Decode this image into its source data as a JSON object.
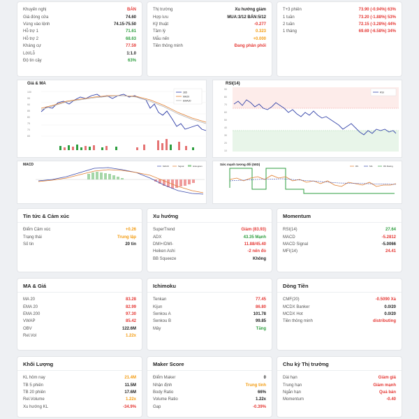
{
  "top_left": {
    "rows": [
      {
        "label": "Khuyến nghị",
        "value": "BÁN",
        "color": "red"
      },
      {
        "label": "Giá đóng cửa",
        "value": "74.60",
        "color": "dark"
      },
      {
        "label": "Vùng vào lệnh",
        "value": "74.15-75.50",
        "color": "dark"
      },
      {
        "label": "Hỗ trợ 1",
        "value": "71.61",
        "color": "green"
      },
      {
        "label": "Hỗ trợ 2",
        "value": "68.63",
        "color": "green"
      },
      {
        "label": "Kháng cự",
        "value": "77.59",
        "color": "red"
      },
      {
        "label": "Lời/Lỗ",
        "value": "1:1.0",
        "color": "dark"
      },
      {
        "label": "Độ tin cậy",
        "value": "63%",
        "color": "green"
      }
    ]
  },
  "top_mid": {
    "rows": [
      {
        "label": "Thị trường",
        "value": "Xu hướng giảm",
        "color": "dark"
      },
      {
        "label": "Hợp lưu",
        "value": "MUA:3/12 BÁN:5/12",
        "color": "dark"
      },
      {
        "label": "Kỹ thuật",
        "value": "-0.277",
        "color": "red"
      },
      {
        "label": "Tâm lý",
        "value": "0.323",
        "color": "orange"
      },
      {
        "label": "Mẫu nến",
        "value": "+0.000",
        "color": "orange"
      },
      {
        "label": "Tiền thông minh",
        "value": "Đang phân phối",
        "color": "red"
      }
    ]
  },
  "top_right": {
    "rows": [
      {
        "label": "T+3 phiên",
        "value": "73.90 (-0.94%) 63%",
        "color": "red"
      },
      {
        "label": "1 tuần",
        "value": "73.20 (-1.88%) 53%",
        "color": "red"
      },
      {
        "label": "2 tuần",
        "value": "72.15 (-3.28%) 44%",
        "color": "red"
      },
      {
        "label": "1 tháng",
        "value": "69.69 (-6.58%) 34%",
        "color": "red"
      }
    ]
  },
  "charts": {
    "price_title": "Giá & MA",
    "price_legend": [
      "365",
      "MA20",
      "EMA20"
    ],
    "price_yticks": [
      "100",
      "95",
      "90",
      "85",
      "80",
      "75",
      "70",
      "65"
    ],
    "rsi_title": "RSI(14)",
    "rsi_legend": "RSI",
    "rsi_yticks": [
      "90",
      "80",
      "70",
      "60",
      "50",
      "40",
      "30",
      "20",
      "10"
    ],
    "macd_title": "MACD",
    "macd_legend": [
      "MACD",
      "Signal",
      "Histogram"
    ],
    "strength_title": "Sức mạnh tương đối (50D)",
    "strength_legend": [
      "RS",
      "MA",
      "RS Rating"
    ]
  },
  "cards": [
    {
      "id": "news",
      "title": "Tin tức & Cảm xúc",
      "rows": [
        {
          "label": "Điểm Cảm xúc",
          "value": "+0.26",
          "color": "orange"
        },
        {
          "label": "Trạng thái",
          "value": "Trung lập",
          "color": "orange"
        },
        {
          "label": "Số tin",
          "value": "20 tin",
          "color": "dark"
        }
      ]
    },
    {
      "id": "trend",
      "title": "Xu hướng",
      "rows": [
        {
          "label": "SuperTrend",
          "value": "Giảm (83.93)",
          "color": "red"
        },
        {
          "label": "ADX",
          "value": "43.35 Mạnh",
          "color": "green"
        },
        {
          "label": "DMI+/DMI-",
          "value": "11.88/45.40",
          "color": "red"
        },
        {
          "label": "Heiken Ashi",
          "value": "-2 nến đỏ",
          "color": "red"
        },
        {
          "label": "BB Squeeze",
          "value": "Không",
          "color": "dark"
        }
      ]
    },
    {
      "id": "momentum",
      "title": "Momentum",
      "rows": [
        {
          "label": "RSI(14)",
          "value": "27.64",
          "color": "green"
        },
        {
          "label": "MACD",
          "value": "-5.2812",
          "color": "red"
        },
        {
          "label": "MACD Signal",
          "value": "-5.0066",
          "color": "dark"
        },
        {
          "label": "MFI(14)",
          "value": "24.41",
          "color": "red"
        }
      ]
    },
    {
      "id": "ma",
      "title": "MA & Giá",
      "rows": [
        {
          "label": "MA 20",
          "value": "83.28",
          "color": "red"
        },
        {
          "label": "EMA 20",
          "value": "82.99",
          "color": "red"
        },
        {
          "label": "EMA 200",
          "value": "97.30",
          "color": "red"
        },
        {
          "label": "VWAP",
          "value": "85.42",
          "color": "red"
        },
        {
          "label": "OBV",
          "value": "122.6M",
          "color": "dark"
        },
        {
          "label": "Rel.Vol",
          "value": "1.22x",
          "color": "orange"
        }
      ]
    },
    {
      "id": "ichimoku",
      "title": "Ichimoku",
      "rows": [
        {
          "label": "Tenkan",
          "value": "77.45",
          "color": "red"
        },
        {
          "label": "Kijun",
          "value": "86.80",
          "color": "red"
        },
        {
          "label": "Senkou A",
          "value": "101.78",
          "color": "dark"
        },
        {
          "label": "Senkou B",
          "value": "99.85",
          "color": "dark"
        },
        {
          "label": "Mây",
          "value": "Tăng",
          "color": "green"
        }
      ]
    },
    {
      "id": "cashflow",
      "title": "Dòng Tiền",
      "rows": [
        {
          "label": "CMF(20)",
          "value": "-0.5090 Xả",
          "color": "red"
        },
        {
          "label": "MCDX Banker",
          "value": "0.0/20",
          "color": "dark"
        },
        {
          "label": "MCDX Hot",
          "value": "0.0/20",
          "color": "dark"
        },
        {
          "label": "Tiền thông minh",
          "value": "distributing",
          "color": "red"
        }
      ]
    },
    {
      "id": "volume",
      "title": "Khối Lượng",
      "rows": [
        {
          "label": "KL hôm nay",
          "value": "21.4M",
          "color": "orange"
        },
        {
          "label": "TB 5 phiên",
          "value": "11.5M",
          "color": "dark"
        },
        {
          "label": "TB 20 phiên",
          "value": "17.6M",
          "color": "dark"
        },
        {
          "label": "Rel.Volume",
          "value": "1.22x",
          "color": "orange"
        },
        {
          "label": "Xu hướng KL",
          "value": "-34.9%",
          "color": "red"
        }
      ]
    },
    {
      "id": "maker",
      "title": "Maker Score",
      "rows": [
        {
          "label": "Điểm Maker",
          "value": "0",
          "color": "dark"
        },
        {
          "label": "Nhận định",
          "value": "Trung tính",
          "color": "orange"
        },
        {
          "label": "Body Ratio",
          "value": "66%",
          "color": "dark"
        },
        {
          "label": "Volume Ratio",
          "value": "1.22x",
          "color": "dark"
        },
        {
          "label": "Gap",
          "value": "-0.39%",
          "color": "red"
        }
      ]
    },
    {
      "id": "cycle",
      "title": "Chu kỳ Thị trường",
      "rows": [
        {
          "label": "Dài hạn",
          "value": "Giảm giá",
          "color": "red"
        },
        {
          "label": "Trung hạn",
          "value": "Giảm mạnh",
          "color": "red"
        },
        {
          "label": "Ngắn hạn",
          "value": "Quá bán",
          "color": "red"
        },
        {
          "label": "Momentum",
          "value": "-0.40",
          "color": "red"
        }
      ]
    }
  ]
}
